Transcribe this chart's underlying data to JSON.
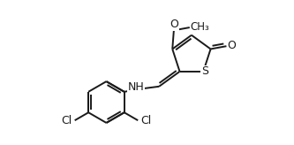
{
  "bg_color": "#ffffff",
  "line_color": "#1a1a1a",
  "line_width": 1.4,
  "font_size": 8.5,
  "fig_width": 3.33,
  "fig_height": 1.64,
  "dpi": 100,
  "xlim": [
    0.0,
    6.5
  ],
  "ylim": [
    -2.8,
    2.2
  ]
}
